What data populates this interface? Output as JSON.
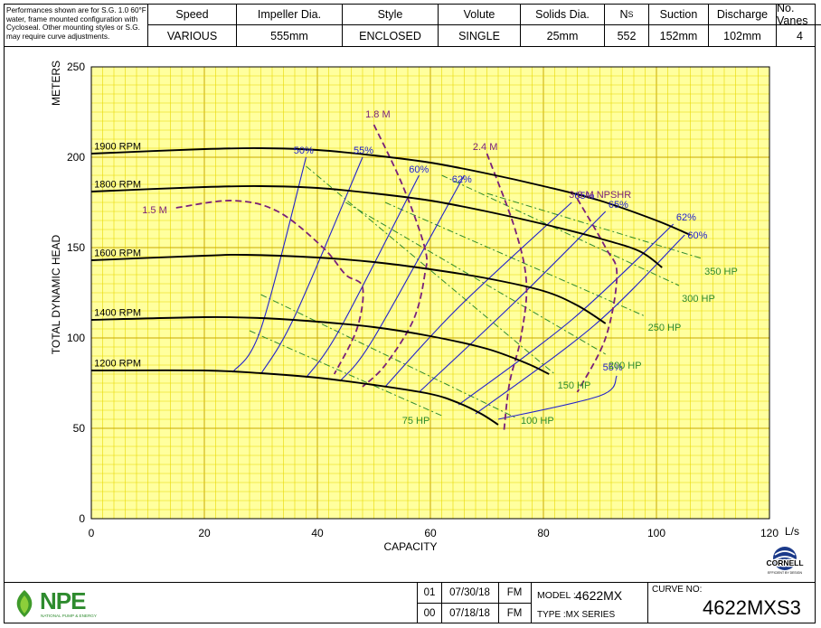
{
  "header": {
    "note": "Performances shown are for S.G. 1.0 60°F water, frame mounted configuration with Cycloseal. Other mounting styles or S.G. may require curve adjustments.",
    "columns": [
      {
        "label": "Speed",
        "value": "VARIOUS"
      },
      {
        "label": "Impeller Dia.",
        "value": "555mm"
      },
      {
        "label": "Style",
        "value": "ENCLOSED"
      },
      {
        "label": "Volute",
        "value": "SINGLE"
      },
      {
        "label": "Solids Dia.",
        "value": "25mm"
      },
      {
        "label": "NS",
        "value": "552"
      },
      {
        "label": "Suction",
        "value": "152mm"
      },
      {
        "label": "Discharge",
        "value": "102mm"
      },
      {
        "label": "No. Vanes",
        "value": "4"
      }
    ]
  },
  "chart_data": {
    "type": "line",
    "xlabel": "CAPACITY",
    "xunit": "L/s",
    "ylabel": "TOTAL DYNAMIC HEAD",
    "yunit": "METERS",
    "xlim": [
      0,
      120
    ],
    "ylim": [
      0,
      250
    ],
    "xticks": [
      0,
      20,
      40,
      60,
      80,
      100,
      120
    ],
    "yticks": [
      0,
      50,
      100,
      150,
      200,
      250
    ],
    "grid": true,
    "colors": {
      "speed": "#000000",
      "efficiency": "#2222cc",
      "npshr": "#7a1f7a",
      "power": "#2e8b2e",
      "grid_minor": "#e8d800",
      "grid_major": "#c9a800",
      "background": "#ffff9e"
    },
    "speed_curves": [
      {
        "label": "1900 RPM",
        "points": [
          [
            0,
            202
          ],
          [
            20,
            204.5
          ],
          [
            30,
            205
          ],
          [
            40,
            204
          ],
          [
            50,
            201
          ],
          [
            60,
            197
          ],
          [
            70,
            191
          ],
          [
            80,
            184
          ],
          [
            90,
            176
          ],
          [
            100,
            165
          ],
          [
            106,
            157
          ]
        ]
      },
      {
        "label": "1800 RPM",
        "points": [
          [
            0,
            181
          ],
          [
            20,
            183.5
          ],
          [
            30,
            184
          ],
          [
            40,
            183
          ],
          [
            50,
            180
          ],
          [
            60,
            176
          ],
          [
            70,
            170
          ],
          [
            80,
            163
          ],
          [
            90,
            155
          ],
          [
            97,
            148
          ],
          [
            101,
            139
          ]
        ]
      },
      {
        "label": "1600 RPM",
        "points": [
          [
            0,
            143
          ],
          [
            20,
            145.5
          ],
          [
            27,
            146
          ],
          [
            40,
            144.5
          ],
          [
            50,
            142
          ],
          [
            60,
            138
          ],
          [
            70,
            133
          ],
          [
            80,
            126
          ],
          [
            86,
            118
          ],
          [
            91,
            108
          ]
        ]
      },
      {
        "label": "1400 RPM",
        "points": [
          [
            0,
            110
          ],
          [
            20,
            111.5
          ],
          [
            30,
            111
          ],
          [
            40,
            109
          ],
          [
            50,
            106
          ],
          [
            60,
            101
          ],
          [
            70,
            94
          ],
          [
            77,
            86
          ],
          [
            81,
            80
          ]
        ]
      },
      {
        "label": "1200 RPM",
        "points": [
          [
            0,
            82
          ],
          [
            20,
            82
          ],
          [
            30,
            80.5
          ],
          [
            40,
            78
          ],
          [
            50,
            74
          ],
          [
            60,
            69
          ],
          [
            65,
            64
          ],
          [
            69,
            58
          ],
          [
            72,
            52
          ]
        ]
      }
    ],
    "efficiency_curves": [
      {
        "label": "50%",
        "points": [
          [
            25,
            81
          ],
          [
            30,
            105
          ],
          [
            38,
            200
          ]
        ]
      },
      {
        "label": "55%",
        "points": [
          [
            30,
            80
          ],
          [
            36,
            112
          ],
          [
            48,
            200
          ]
        ]
      },
      {
        "label": "60%",
        "points": [
          [
            38,
            78
          ],
          [
            44,
            105
          ],
          [
            58,
            190
          ]
        ]
      },
      {
        "label": "62%",
        "points": [
          [
            44,
            76
          ],
          [
            50,
            100
          ],
          [
            66,
            190
          ]
        ]
      },
      {
        "label": "65%",
        "points": [
          [
            52,
            73
          ],
          [
            65,
            117
          ],
          [
            85,
            175
          ]
        ]
      },
      {
        "label": "65%",
        "points": [
          [
            58,
            70
          ],
          [
            75,
            120
          ],
          [
            91,
            170
          ]
        ]
      },
      {
        "label": "62%",
        "points": [
          [
            65,
            63
          ],
          [
            85,
            110
          ],
          [
            103,
            163
          ]
        ]
      },
      {
        "label": "60%",
        "points": [
          [
            68,
            58
          ],
          [
            89,
            107
          ],
          [
            105,
            157
          ]
        ]
      },
      {
        "label": "55%",
        "points": [
          [
            72,
            55
          ],
          [
            90,
            68
          ],
          [
            93,
            79
          ]
        ]
      }
    ],
    "npshr_curves": [
      {
        "label": "1.5 M",
        "points": [
          [
            15,
            172
          ],
          [
            25,
            176
          ],
          [
            33,
            170
          ],
          [
            41,
            150
          ],
          [
            45,
            135
          ],
          [
            48,
            128
          ],
          [
            47,
            105
          ],
          [
            43,
            80
          ]
        ]
      },
      {
        "label": "1.8 M",
        "points": [
          [
            50,
            218
          ],
          [
            55,
            185
          ],
          [
            59,
            150
          ],
          [
            59,
            135
          ],
          [
            57,
            110
          ],
          [
            52,
            85
          ],
          [
            48,
            73
          ]
        ]
      },
      {
        "label": "2.4 M",
        "points": [
          [
            70,
            202
          ],
          [
            75,
            160
          ],
          [
            77,
            130
          ],
          [
            76,
            100
          ],
          [
            74,
            75
          ],
          [
            73,
            48
          ]
        ]
      },
      {
        "label": "3.0 M NPSHR",
        "points": [
          [
            86,
            177
          ],
          [
            91,
            150
          ],
          [
            93,
            135
          ],
          [
            91,
            100
          ],
          [
            86,
            70
          ]
        ]
      }
    ],
    "power_lines": [
      {
        "label": "75 HP",
        "points": [
          [
            28,
            104
          ],
          [
            62,
            57
          ]
        ]
      },
      {
        "label": "100 HP",
        "points": [
          [
            30,
            124
          ],
          [
            75,
            56
          ]
        ]
      },
      {
        "label": "150 HP",
        "points": [
          [
            38,
            195
          ],
          [
            82,
            80
          ]
        ]
      },
      {
        "label": "200 HP",
        "points": [
          [
            45,
            175
          ],
          [
            91,
            91
          ]
        ]
      },
      {
        "label": "250 HP",
        "points": [
          [
            52,
            175
          ],
          [
            98,
            112
          ]
        ]
      },
      {
        "label": "300 HP",
        "points": [
          [
            62,
            190
          ],
          [
            104,
            129
          ]
        ]
      },
      {
        "label": "350 HP",
        "points": [
          [
            70,
            180
          ],
          [
            108,
            144
          ]
        ]
      }
    ]
  },
  "footer": {
    "logo_text": "NPE",
    "logo_sub": "NATIONAL PUMP & ENERGY",
    "revisions": [
      {
        "rev": "01",
        "date": "07/30/18",
        "by": "FM"
      },
      {
        "rev": "00",
        "date": "07/18/18",
        "by": "FM"
      }
    ],
    "model_label": "MODEL :",
    "model": "4622MX",
    "type": "TYPE :MX SERIES",
    "curve_label": "CURVE NO:",
    "curve_no": "4622MXS3",
    "brand": "CORNELL",
    "brand_sub": "EFFICIENT BY DESIGN"
  }
}
